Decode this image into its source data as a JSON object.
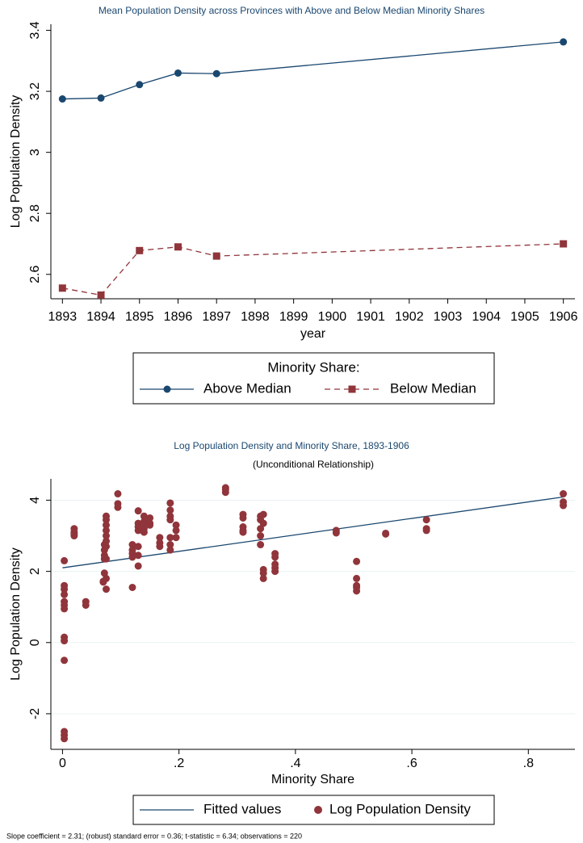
{
  "chart_data": [
    {
      "type": "line",
      "title": "Mean Population Density across Provinces with Above and Below Median Minority Shares",
      "xlabel": "year",
      "ylabel": "Log Population Density",
      "xlim": [
        1892.7,
        1906.3
      ],
      "xticks": [
        1893,
        1894,
        1895,
        1896,
        1897,
        1898,
        1899,
        1900,
        1901,
        1902,
        1903,
        1904,
        1905,
        1906
      ],
      "ylim": [
        2.52,
        3.42
      ],
      "yticks": [
        2.6,
        2.8,
        3,
        3.2,
        3.4
      ],
      "grid": false,
      "legend_title": "Minority Share:",
      "legend_position": "bottom",
      "series": [
        {
          "name": "Above Median",
          "color": "#1a476f",
          "marker": "circle",
          "dash": false,
          "type": "line",
          "x": [
            1893,
            1894,
            1895,
            1896,
            1897,
            1906
          ],
          "values": [
            3.175,
            3.178,
            3.222,
            3.26,
            3.258,
            3.362
          ]
        },
        {
          "name": "Below Median",
          "color": "#90353b",
          "marker": "square",
          "dash": true,
          "type": "line",
          "x": [
            1893,
            1894,
            1895,
            1896,
            1897,
            1906
          ],
          "values": [
            2.555,
            2.532,
            2.678,
            2.69,
            2.66,
            2.7
          ]
        }
      ]
    },
    {
      "type": "scatter",
      "title": "Log Population Density and Minority Share, 1893-1906",
      "subtitle": "(Unconditional Relationship)",
      "xlabel": "Minority Share",
      "ylabel": "Log Population Density",
      "xlim": [
        -0.02,
        0.88
      ],
      "xticks": [
        0,
        {
          "value": 0.2,
          "label": ".2"
        },
        {
          "value": 0.4,
          "label": ".4"
        },
        {
          "value": 0.6,
          "label": ".6"
        },
        {
          "value": 0.8,
          "label": ".8"
        }
      ],
      "ylim": [
        -3.0,
        4.6
      ],
      "yticks": [
        -2,
        0,
        2,
        4
      ],
      "grid": true,
      "legend_position": "bottom",
      "note": "Slope coefficient = 2.31; (robust) standard error = 0.36; t-statistic = 6.34; observations = 220",
      "series": [
        {
          "name": "Fitted values",
          "color": "#1a476f",
          "type": "line",
          "marker": "none",
          "dash": false,
          "x": [
            0,
            0.86
          ],
          "values": [
            2.1,
            4.09
          ]
        },
        {
          "name": "Log Population Density",
          "color": "#90353b",
          "type": "scatter",
          "marker": "circle",
          "dash": false,
          "x": [
            0.003,
            0.003,
            0.003,
            0.003,
            0.003,
            0.003,
            0.003,
            0.003,
            0.003,
            0.003,
            0.003,
            0.003,
            0.003,
            0.02,
            0.02,
            0.02,
            0.02,
            0.04,
            0.04,
            0.07,
            0.07,
            0.072,
            0.072,
            0.072,
            0.072,
            0.072,
            0.075,
            0.075,
            0.075,
            0.075,
            0.075,
            0.075,
            0.075,
            0.075,
            0.075,
            0.075,
            0.095,
            0.095,
            0.095,
            0.12,
            0.12,
            0.12,
            0.12,
            0.12,
            0.13,
            0.13,
            0.13,
            0.13,
            0.13,
            0.13,
            0.13,
            0.14,
            0.14,
            0.14,
            0.14,
            0.14,
            0.15,
            0.15,
            0.15,
            0.167,
            0.167,
            0.167,
            0.185,
            0.185,
            0.185,
            0.185,
            0.185,
            0.185,
            0.185,
            0.195,
            0.195,
            0.195,
            0.28,
            0.28,
            0.28,
            0.31,
            0.31,
            0.31,
            0.31,
            0.31,
            0.34,
            0.34,
            0.34,
            0.34,
            0.34,
            0.345,
            0.345,
            0.345,
            0.345,
            0.345,
            0.365,
            0.365,
            0.365,
            0.365,
            0.365,
            0.47,
            0.47,
            0.505,
            0.505,
            0.505,
            0.505,
            0.505,
            0.555,
            0.555,
            0.625,
            0.625,
            0.625,
            0.86,
            0.86,
            0.86
          ],
          "values": [
            2.3,
            1.6,
            1.5,
            1.35,
            1.15,
            1.05,
            0.95,
            0.15,
            0.05,
            -0.5,
            -2.5,
            -2.6,
            -2.7,
            3.2,
            3.1,
            3.05,
            3.0,
            1.15,
            1.05,
            1.7,
            1.72,
            2.75,
            2.6,
            2.45,
            2.35,
            1.95,
            3.55,
            3.45,
            3.3,
            3.15,
            3.0,
            2.85,
            2.7,
            2.35,
            1.8,
            1.5,
            4.18,
            3.9,
            3.8,
            2.75,
            2.6,
            2.5,
            2.4,
            1.55,
            3.7,
            3.35,
            3.25,
            3.15,
            2.7,
            2.45,
            2.15,
            3.55,
            3.4,
            3.3,
            3.2,
            3.1,
            3.5,
            3.35,
            3.3,
            2.95,
            2.8,
            2.7,
            3.92,
            3.72,
            3.55,
            3.45,
            2.95,
            2.75,
            2.6,
            3.3,
            3.15,
            2.95,
            4.35,
            4.3,
            4.22,
            3.6,
            3.5,
            3.25,
            3.15,
            3.1,
            3.55,
            3.45,
            3.2,
            3.0,
            2.75,
            3.6,
            3.35,
            2.05,
            1.95,
            1.8,
            2.5,
            2.4,
            2.2,
            2.1,
            2.0,
            3.15,
            3.08,
            2.28,
            1.8,
            1.6,
            1.55,
            1.45,
            3.07,
            3.05,
            3.45,
            3.2,
            3.15,
            4.18,
            3.95,
            3.85
          ]
        }
      ]
    }
  ]
}
